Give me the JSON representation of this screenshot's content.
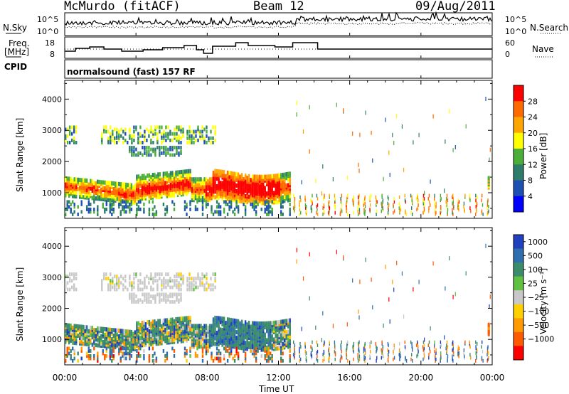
{
  "header": {
    "station": "McMurdo (fitACF)",
    "beam": "Beam 12",
    "date": "09/Aug/2011"
  },
  "noise_panel": {
    "left_label": "N.Sky",
    "right_label": "N.Search",
    "left_ticks": [
      "10^5",
      "10^0"
    ],
    "right_ticks": [
      "10^5",
      "10^0"
    ]
  },
  "freq_panel": {
    "left_label_1": "Freq.",
    "left_label_2": "[MHz]",
    "right_label": "Nave",
    "left_ticks": [
      "18",
      "8"
    ],
    "right_ticks": [
      "60",
      "0"
    ]
  },
  "cpid_panel": {
    "label": "CPID",
    "text": "normalsound (fast) 157 RF"
  },
  "chart_data": {
    "type": "heatmap",
    "x_axis": {
      "label": "Time UT",
      "range_hours": [
        0,
        24
      ],
      "ticks": [
        "00:00",
        "04:00",
        "08:00",
        "12:00",
        "16:00",
        "20:00",
        "00:00"
      ]
    },
    "y_axis": {
      "label": "Slant Range [km]",
      "range": [
        180,
        4600
      ],
      "ticks": [
        1000,
        2000,
        3000,
        4000
      ]
    },
    "panels": [
      {
        "quantity": "Power [dB]",
        "colorbar_ticks": [
          "28",
          "24",
          "20",
          "16",
          "12",
          "8",
          "4"
        ],
        "colors": [
          "#0000ff",
          "#1e50b4",
          "#2e7d6a",
          "#4caf3a",
          "#ffff00",
          "#ffa500",
          "#ff6a00",
          "#ff0000"
        ]
      },
      {
        "quantity": "Velocity [m s⁻¹]",
        "colorbar_ticks": [
          "1000",
          "500",
          "100",
          "25",
          "−25",
          "−100",
          "−500",
          "−1000"
        ],
        "colors": [
          "#2040c0",
          "#2f6fb0",
          "#3b8c6a",
          "#60c040",
          "#c8c8c8",
          "#ffd000",
          "#ff9a00",
          "#ff5a00",
          "#ff0000"
        ]
      }
    ]
  }
}
